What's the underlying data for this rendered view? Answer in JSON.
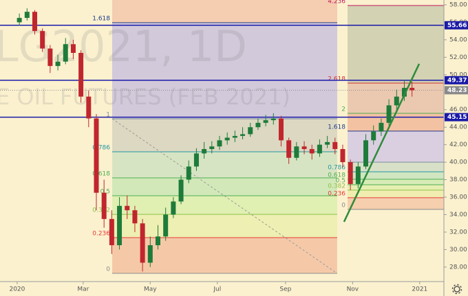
{
  "chart_data": {
    "type": "candlestick",
    "watermark": [
      "LG2021, 1D",
      "E OIL FUTURES (FEB 2021)"
    ],
    "x": [
      2,
      9,
      16,
      23,
      30,
      37,
      44,
      51,
      58,
      65,
      72,
      79,
      86,
      93,
      100,
      107,
      114,
      121,
      128,
      135,
      142,
      149,
      156,
      163,
      170,
      177,
      184,
      191,
      198,
      205,
      212,
      219,
      226,
      233,
      240,
      247,
      254,
      261,
      268,
      275,
      282,
      289,
      296,
      303,
      310,
      317,
      324,
      331,
      338,
      345,
      352,
      359
    ],
    "open": [
      56.0,
      56.5,
      57.2,
      55.0,
      53.0,
      51.0,
      51.5,
      53.5,
      52.5,
      47.5,
      45.0,
      36.5,
      33.5,
      30.5,
      35.0,
      34.5,
      33.0,
      28.5,
      30.5,
      31.5,
      34.0,
      35.5,
      38.0,
      39.5,
      41.0,
      41.5,
      41.8,
      42.5,
      42.8,
      43.0,
      43.2,
      44.0,
      44.5,
      44.8,
      45.0,
      42.5,
      40.5,
      41.8,
      41.5,
      41.0,
      42.0,
      42.3,
      41.5,
      40.0,
      37.5,
      39.5,
      42.5,
      43.5,
      44.5,
      46.5,
      47.5,
      48.5
    ],
    "high": [
      57.0,
      57.6,
      57.4,
      55.3,
      53.4,
      52.3,
      54.2,
      54.0,
      52.8,
      48.2,
      45.5,
      38.0,
      34.5,
      36.0,
      36.2,
      35.0,
      33.5,
      31.5,
      32.8,
      34.8,
      36.0,
      38.5,
      40.2,
      41.6,
      42.3,
      42.4,
      43.0,
      43.4,
      43.6,
      44.0,
      44.5,
      45.0,
      45.4,
      45.6,
      45.3,
      42.8,
      42.3,
      42.4,
      42.0,
      42.6,
      43.0,
      42.8,
      42.0,
      40.3,
      40.0,
      43.2,
      44.2,
      45.0,
      47.2,
      48.3,
      49.4,
      49.2
    ],
    "low": [
      55.6,
      56.2,
      54.6,
      52.6,
      50.2,
      50.5,
      51.2,
      51.8,
      46.8,
      44.0,
      34.5,
      32.5,
      29.5,
      30.0,
      33.5,
      32.0,
      27.5,
      28.0,
      30.0,
      31.0,
      33.6,
      35.2,
      37.6,
      39.0,
      40.4,
      41.0,
      41.4,
      42.0,
      42.3,
      42.6,
      42.9,
      43.7,
      44.1,
      44.3,
      41.8,
      39.8,
      40.2,
      40.9,
      40.3,
      40.6,
      41.6,
      40.9,
      39.4,
      36.8,
      37.0,
      39.2,
      42.0,
      43.0,
      44.2,
      46.0,
      47.0,
      47.5
    ],
    "close": [
      56.5,
      57.2,
      55.0,
      53.0,
      51.0,
      51.5,
      53.5,
      52.5,
      47.5,
      45.0,
      36.5,
      33.5,
      30.5,
      35.0,
      34.5,
      33.0,
      28.5,
      30.5,
      31.5,
      34.0,
      35.5,
      38.0,
      39.5,
      41.0,
      41.5,
      41.8,
      42.5,
      42.8,
      43.0,
      43.2,
      44.0,
      44.5,
      44.8,
      45.0,
      42.5,
      40.5,
      41.8,
      41.5,
      41.0,
      42.0,
      42.3,
      41.5,
      40.0,
      37.5,
      39.5,
      42.5,
      43.5,
      44.5,
      46.5,
      47.5,
      48.5,
      48.23
    ],
    "up_color": "#1e7b3a",
    "down_color": "#c0262d",
    "xlim": [
      -15.6,
      388
    ],
    "ylim": [
      26.34,
      58.55
    ],
    "xticks": [
      {
        "value": 0,
        "label": "2020"
      },
      {
        "value": 60,
        "label": "Mar"
      },
      {
        "value": 121,
        "label": "May"
      },
      {
        "value": 182,
        "label": "Jul"
      },
      {
        "value": 244,
        "label": "Sep"
      },
      {
        "value": 305,
        "label": "Nov"
      },
      {
        "value": 366,
        "label": "2021"
      }
    ],
    "yticks": [
      {
        "value": 28,
        "label": "28.00"
      },
      {
        "value": 30,
        "label": "30.00"
      },
      {
        "value": 32,
        "label": "32.00"
      },
      {
        "value": 34,
        "label": "34.00"
      },
      {
        "value": 36,
        "label": "36.00"
      },
      {
        "value": 38,
        "label": "38.00"
      },
      {
        "value": 40,
        "label": "40.00"
      },
      {
        "value": 42,
        "label": "42.00"
      },
      {
        "value": 44,
        "label": "44.00"
      },
      {
        "value": 46,
        "label": "46.00"
      },
      {
        "value": 48,
        "label": "48.00"
      },
      {
        "value": 50,
        "label": "50.00"
      },
      {
        "value": 52,
        "label": "52.00"
      },
      {
        "value": 54,
        "label": "54.00"
      },
      {
        "value": 56,
        "label": "56.00"
      },
      {
        "value": 58,
        "label": "58.00"
      }
    ],
    "fib": [
      {
        "x_start": 86.4,
        "x_end": 291,
        "levels": [
          {
            "ratio": 1.618,
            "price": 55.96,
            "color": "#1e3a8a"
          },
          {
            "ratio": 1,
            "price": 44.96,
            "color": "#78909c"
          },
          {
            "ratio": 0.786,
            "price": 41.19,
            "color": "#2196a3"
          },
          {
            "ratio": 0.618,
            "price": 38.2,
            "color": "#4caf50"
          },
          {
            "ratio": 0.5,
            "price": 36.16,
            "color": "#4caf50"
          },
          {
            "ratio": 0.382,
            "price": 34.03,
            "color": "#8bc34a"
          },
          {
            "ratio": 0.236,
            "price": 31.37,
            "color": "#e53935"
          },
          {
            "ratio": 0,
            "price": 27.28,
            "color": "#8a8a8a"
          }
        ],
        "band_colors": [
          "#f5cdb0",
          "#d2c9db",
          "#dcd8c1",
          "#d7e4c3",
          "#d2e8b9",
          "#e0efb2",
          "#eeefb2",
          "#f5c9a8"
        ]
      },
      {
        "x_start": 300.4,
        "x_end": 388,
        "levels": [
          {
            "ratio": 4.236,
            "price": 57.92,
            "color": "#c2185b"
          },
          {
            "ratio": 2.618,
            "price": 49.04,
            "color": "#d32f2f"
          },
          {
            "ratio": 2,
            "price": 45.59,
            "color": "#4caf50"
          },
          {
            "ratio": 1.618,
            "price": 43.55,
            "color": "#1e3a8a"
          },
          {
            "ratio": 1,
            "price": 40.0,
            "color": "#78909c"
          },
          {
            "ratio": 0.786,
            "price": 38.9,
            "color": "#2196a3"
          },
          {
            "ratio": 0.618,
            "price": 38.05,
            "color": "#4caf50"
          },
          {
            "ratio": 0.5,
            "price": 37.42,
            "color": "#4caf50"
          },
          {
            "ratio": 0.382,
            "price": 36.8,
            "color": "#8bc34a"
          },
          {
            "ratio": 0.236,
            "price": 35.93,
            "color": "#e53935"
          },
          {
            "ratio": 0,
            "price": 34.6,
            "color": "#8a8a8a"
          }
        ],
        "band_colors": [
          "#fbf1cf",
          "#d3d2b3",
          "#ebc9b0",
          "#f3c2a2",
          "#dacfe0",
          "#d9e0c8",
          "#d0e6c0",
          "#d7ebb6",
          "#e6efb1",
          "#f1edb1",
          "#f6cfae"
        ]
      }
    ],
    "hlines": [
      {
        "value": 55.66,
        "color": "#1a1aa8"
      },
      {
        "value": 49.37,
        "color": "#1a1aa8"
      },
      {
        "value": 45.15,
        "color": "#1a1aa8"
      }
    ],
    "last_price": 48.23,
    "last_price_color": "#8a8a8a",
    "trend_line": {
      "x": [
        297.2,
        365.5
      ],
      "y": [
        33.18,
        51.25
      ],
      "color": "#2e8b3a"
    }
  }
}
